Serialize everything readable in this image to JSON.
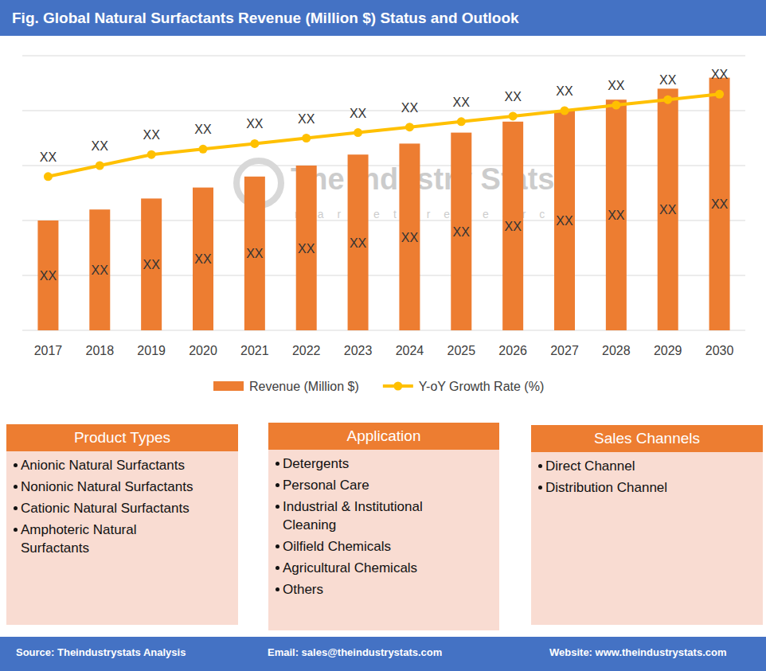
{
  "chart_data": {
    "type": "bar",
    "title": "Fig. Global Natural Surfactants  Revenue (Million $) Status and Outlook",
    "categories": [
      "2017",
      "2018",
      "2019",
      "2020",
      "2021",
      "2022",
      "2023",
      "2024",
      "2025",
      "2026",
      "2027",
      "2028",
      "2029",
      "2030"
    ],
    "series": [
      {
        "name": "Revenue (Million $)",
        "type": "bar",
        "color": "#ed7d31",
        "values": [
          2.0,
          2.2,
          2.4,
          2.6,
          2.8,
          3.0,
          3.2,
          3.4,
          3.6,
          3.8,
          4.0,
          4.2,
          4.4,
          4.6
        ],
        "value_labels": [
          "XX",
          "XX",
          "XX",
          "XX",
          "XX",
          "XX",
          "XX",
          "XX",
          "XX",
          "XX",
          "XX",
          "XX",
          "XX",
          "XX"
        ]
      },
      {
        "name": "Y-oY Growth Rate (%)",
        "type": "line",
        "color": "#ffc000",
        "marker": "circle",
        "values": [
          2.8,
          3.0,
          3.2,
          3.3,
          3.4,
          3.5,
          3.6,
          3.7,
          3.8,
          3.9,
          4.0,
          4.1,
          4.2,
          4.3
        ],
        "value_labels": [
          "XX",
          "XX",
          "XX",
          "XX",
          "XX",
          "XX",
          "XX",
          "XX",
          "XX",
          "XX",
          "XX",
          "XX",
          "XX",
          "XX"
        ]
      }
    ],
    "ylim": [
      0,
      5
    ],
    "yticks": [
      0,
      1,
      2,
      3,
      4,
      5
    ],
    "grid": true,
    "data_labels": true,
    "tick_labels": "x",
    "legend": "bottom"
  },
  "watermark": {
    "title": "The Industry Stats",
    "subtitle": "market research"
  },
  "panels": [
    {
      "title": "Product Types",
      "items": [
        "Anionic Natural Surfactants",
        "Nonionic Natural Surfactants",
        "Cationic Natural Surfactants",
        "Amphoteric Natural Surfactants"
      ]
    },
    {
      "title": "Application",
      "items": [
        "Detergents",
        "Personal Care",
        "Industrial & Institutional Cleaning",
        "Oilfield Chemicals",
        "Agricultural Chemicals",
        "Others"
      ]
    },
    {
      "title": "Sales Channels",
      "items": [
        "Direct Channel",
        "Distribution Channel"
      ]
    }
  ],
  "footer": [
    "Source: Theindustrystats Analysis",
    "Email: sales@theindustrystats.com",
    "Website: www.theindustrystats.com"
  ]
}
